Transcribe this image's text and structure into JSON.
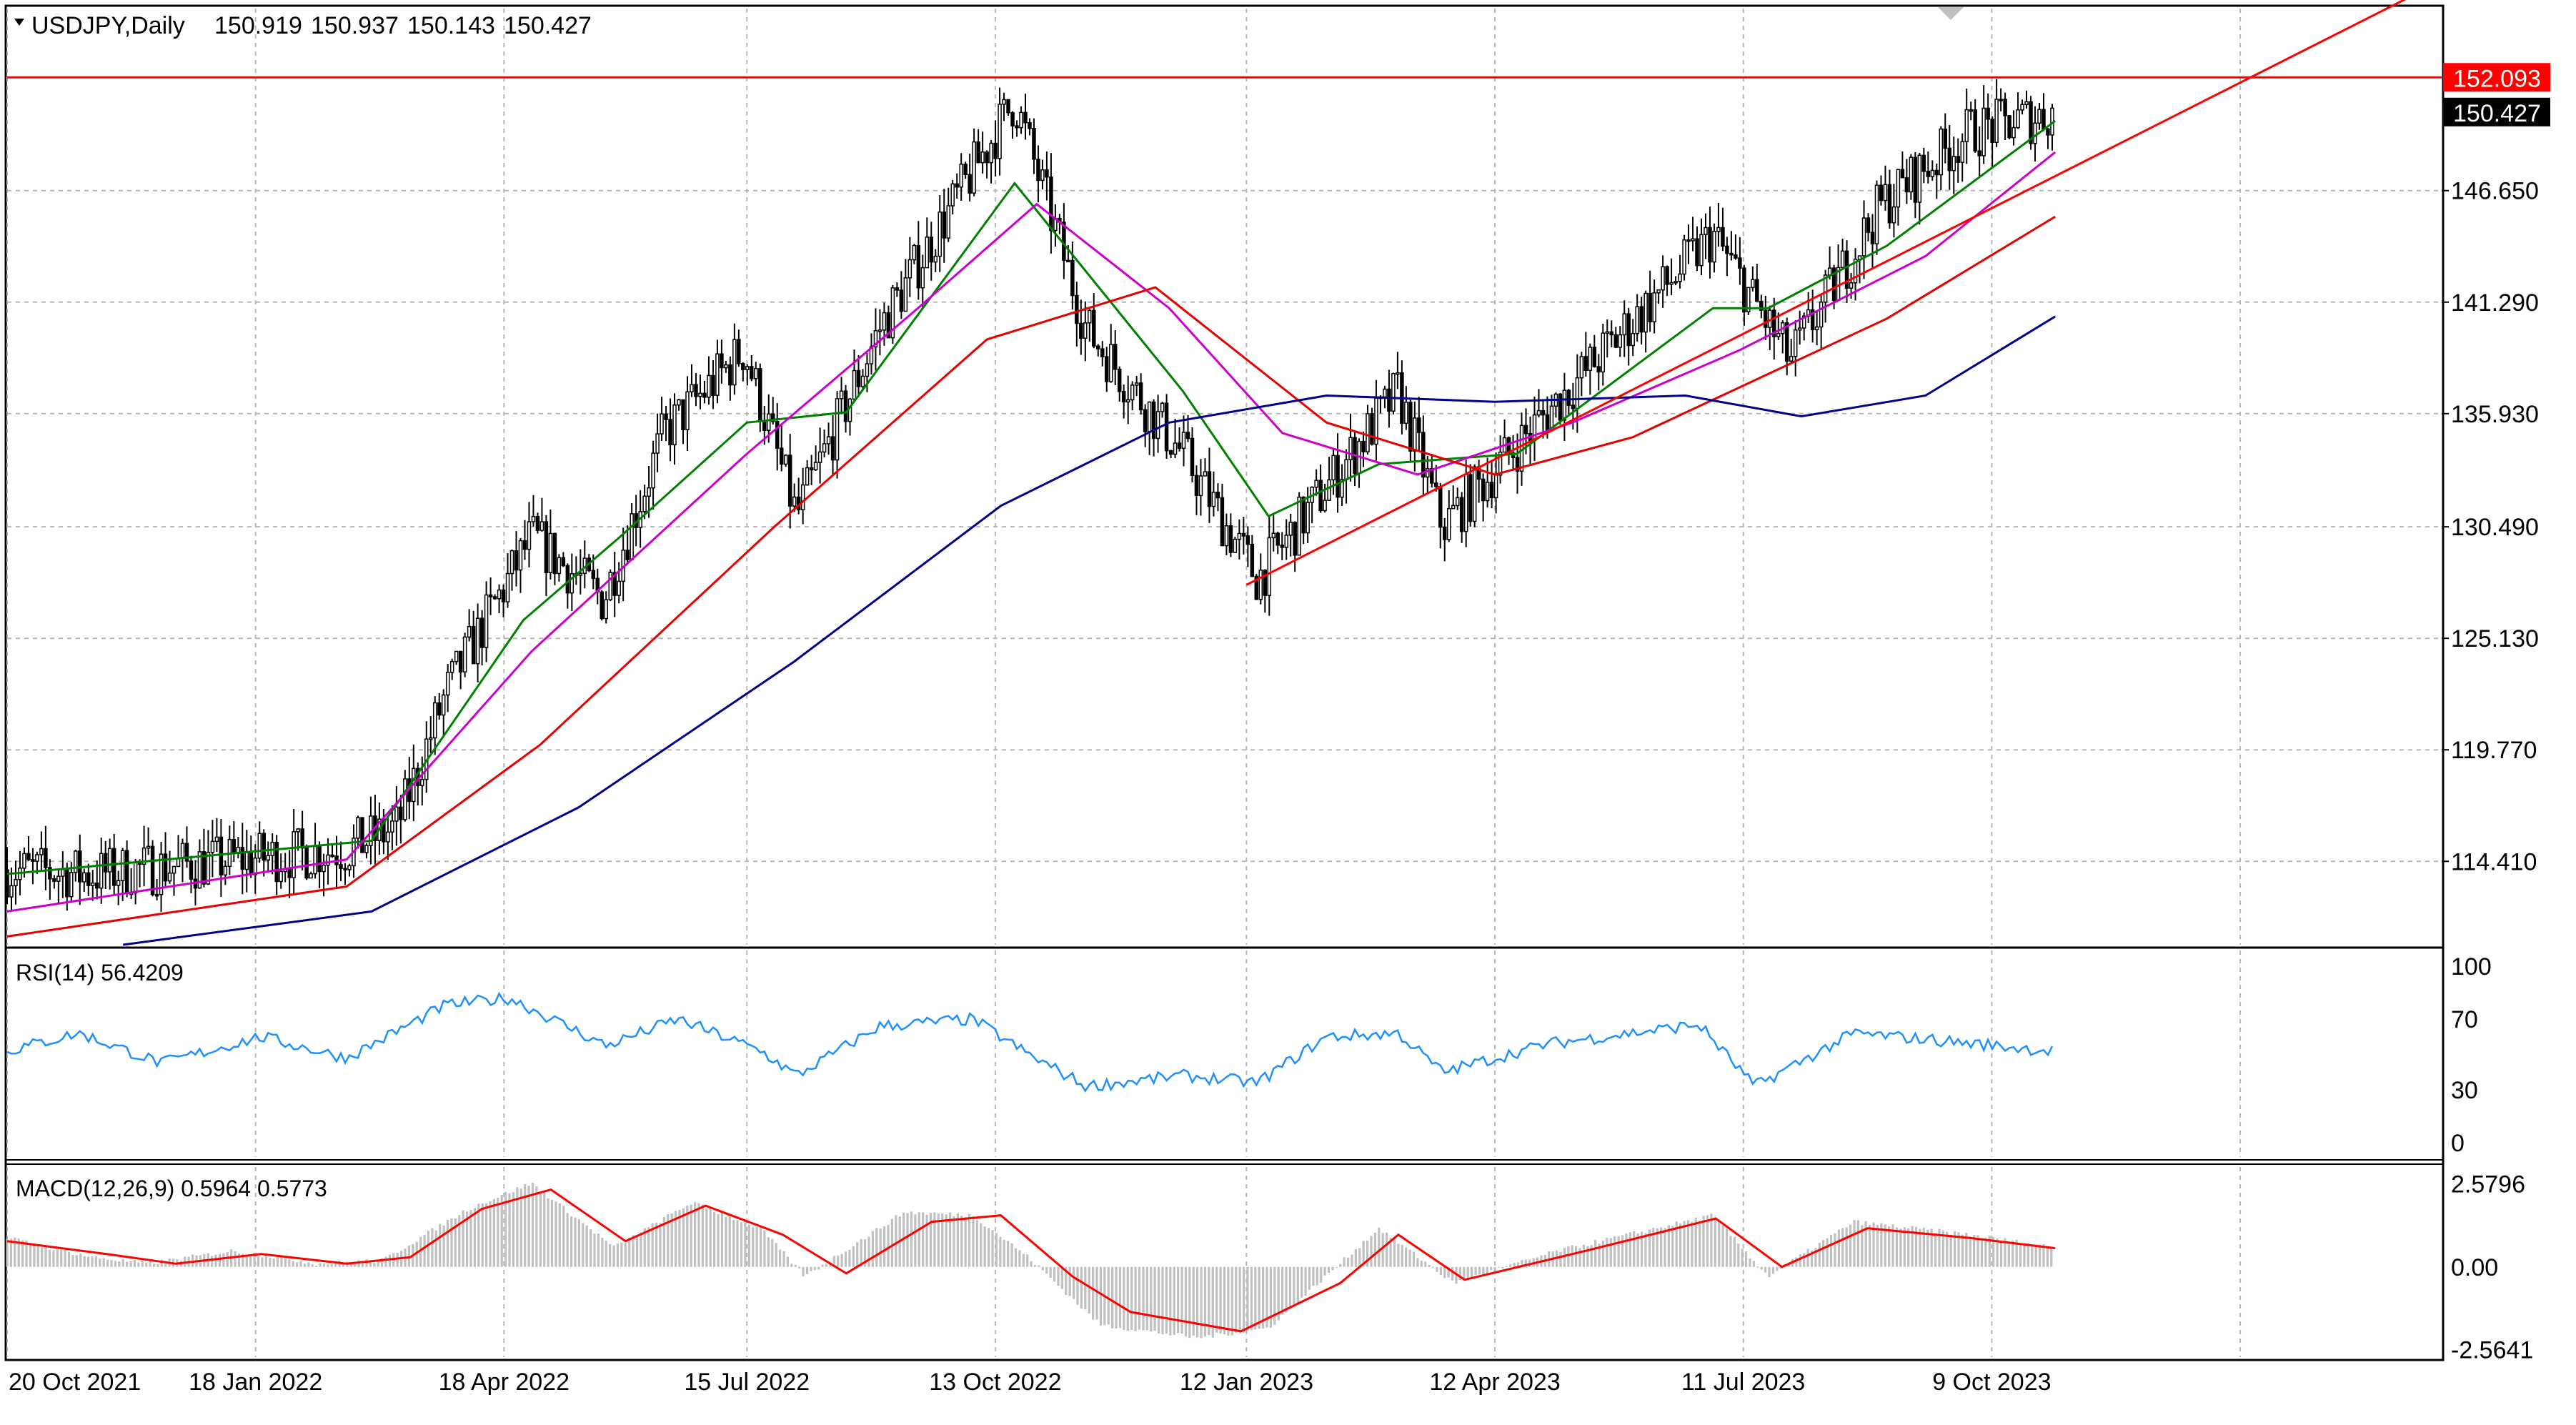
{
  "chart_data": {
    "type": "candlestick",
    "symbol_header": "USDJPY,Daily",
    "ohlc_header": [
      "150.919",
      "150.937",
      "150.143",
      "150.427"
    ],
    "y_axis": {
      "range": [
        110.4,
        155.4
      ],
      "ticks": [
        "146.650",
        "141.290",
        "135.930",
        "130.490",
        "125.130",
        "119.770",
        "114.410"
      ],
      "tick_values": [
        146.65,
        141.29,
        135.93,
        130.49,
        125.13,
        119.77,
        114.41
      ]
    },
    "x_axis": {
      "range": [
        "2021-10-20",
        "2024-03-20"
      ],
      "ticks": [
        "20 Oct 2021",
        "18 Jan 2022",
        "18 Apr 2022",
        "15 Jul 2022",
        "13 Oct 2022",
        "12 Jan 2023",
        "12 Apr 2023",
        "11 Jul 2023",
        "9 Oct 2023"
      ],
      "tick_dates": [
        "2021-10-20",
        "2022-01-18",
        "2022-04-18",
        "2022-07-15",
        "2022-10-13",
        "2023-01-12",
        "2023-04-12",
        "2023-07-11",
        "2023-10-09"
      ],
      "last_bar": "2023-11-01"
    },
    "price_path": [
      [
        "2021-10-20",
        114.0
      ],
      [
        "2021-11-20",
        113.8
      ],
      [
        "2021-12-20",
        114.2
      ],
      [
        "2022-01-20",
        114.6
      ],
      [
        "2022-02-20",
        115.0
      ],
      [
        "2022-03-10",
        116.0
      ],
      [
        "2022-03-28",
        122.5
      ],
      [
        "2022-04-28",
        130.0
      ],
      [
        "2022-05-24",
        127.0
      ],
      [
        "2022-06-15",
        135.0
      ],
      [
        "2022-07-14",
        139.0
      ],
      [
        "2022-08-02",
        131.0
      ],
      [
        "2022-09-01",
        140.0
      ],
      [
        "2022-10-20",
        151.0
      ],
      [
        "2022-11-15",
        140.0
      ],
      [
        "2022-12-20",
        134.0
      ],
      [
        "2023-01-16",
        128.0
      ],
      [
        "2023-03-08",
        137.0
      ],
      [
        "2023-03-24",
        130.5
      ],
      [
        "2023-05-01",
        136.0
      ],
      [
        "2023-06-30",
        144.5
      ],
      [
        "2023-07-28",
        138.5
      ],
      [
        "2023-08-30",
        146.0
      ],
      [
        "2023-10-01",
        149.5
      ],
      [
        "2023-11-01",
        150.4
      ]
    ],
    "moving_averages": [
      {
        "color": "#008000",
        "points": [
          [
            "2021-10-20",
            113.8
          ],
          [
            "2022-03-01",
            115.4
          ],
          [
            "2022-04-25",
            126.0
          ],
          [
            "2022-05-30",
            130.0
          ],
          [
            "2022-07-15",
            135.5
          ],
          [
            "2022-08-20",
            136.0
          ],
          [
            "2022-10-20",
            147.0
          ],
          [
            "2022-12-20",
            137.0
          ],
          [
            "2023-01-20",
            131.0
          ],
          [
            "2023-03-01",
            133.5
          ],
          [
            "2023-04-20",
            134.0
          ],
          [
            "2023-06-30",
            141.0
          ],
          [
            "2023-07-20",
            141.0
          ],
          [
            "2023-09-01",
            144.0
          ],
          [
            "2023-11-01",
            150.0
          ]
        ]
      },
      {
        "color": "#cc00cc",
        "points": [
          [
            "2021-10-20",
            112.0
          ],
          [
            "2022-02-20",
            114.5
          ],
          [
            "2022-04-28",
            124.5
          ],
          [
            "2022-07-15",
            134.0
          ],
          [
            "2022-09-15",
            141.0
          ],
          [
            "2022-10-28",
            146.0
          ],
          [
            "2022-12-15",
            141.0
          ],
          [
            "2023-01-25",
            135.0
          ],
          [
            "2023-03-15",
            133.0
          ],
          [
            "2023-05-10",
            135.5
          ],
          [
            "2023-07-10",
            139.0
          ],
          [
            "2023-09-15",
            143.5
          ],
          [
            "2023-11-01",
            148.5
          ]
        ]
      },
      {
        "color": "#e60000",
        "points": [
          [
            "2021-10-20",
            110.8
          ],
          [
            "2022-02-20",
            113.2
          ],
          [
            "2022-05-01",
            120.0
          ],
          [
            "2022-07-25",
            130.5
          ],
          [
            "2022-10-10",
            139.5
          ],
          [
            "2022-12-10",
            142.0
          ],
          [
            "2023-02-10",
            135.5
          ],
          [
            "2023-04-12",
            133.0
          ],
          [
            "2023-06-01",
            134.8
          ],
          [
            "2023-09-01",
            140.5
          ],
          [
            "2023-11-01",
            145.4
          ]
        ]
      },
      {
        "color": "#00008b",
        "points": [
          [
            "2021-12-01",
            110.4
          ],
          [
            "2022-03-01",
            112.0
          ],
          [
            "2022-05-15",
            117.0
          ],
          [
            "2022-08-01",
            124.0
          ],
          [
            "2022-10-15",
            131.5
          ],
          [
            "2022-12-15",
            135.5
          ],
          [
            "2023-02-10",
            136.8
          ],
          [
            "2023-04-12",
            136.5
          ],
          [
            "2023-06-20",
            136.8
          ],
          [
            "2023-08-01",
            135.8
          ],
          [
            "2023-09-15",
            136.8
          ],
          [
            "2023-11-01",
            140.6
          ]
        ]
      }
    ],
    "lines": [
      {
        "type": "horizontal",
        "value": 152.093,
        "label": "152.093",
        "color": "#ff0000"
      },
      {
        "type": "trend",
        "from": [
          "2023-01-12",
          127.7
        ],
        "to": [
          "2024-03-18",
          156.6
        ],
        "color": "#ff0000"
      }
    ],
    "current_price_label": "150.427",
    "indicators": [
      {
        "type": "line",
        "header": "RSI(14) 56.4209",
        "range": [
          0,
          100
        ],
        "levels": [
          "100",
          "70",
          "30",
          "0"
        ],
        "level_values": [
          100,
          70,
          30,
          0
        ],
        "color": "#1e90ff",
        "points": [
          [
            "2021-10-20",
            52
          ],
          [
            "2021-11-15",
            62
          ],
          [
            "2021-12-15",
            45
          ],
          [
            "2022-01-20",
            60
          ],
          [
            "2022-02-20",
            48
          ],
          [
            "2022-03-28",
            78
          ],
          [
            "2022-04-20",
            82
          ],
          [
            "2022-05-25",
            55
          ],
          [
            "2022-06-20",
            70
          ],
          [
            "2022-07-20",
            52
          ],
          [
            "2022-08-02",
            38
          ],
          [
            "2022-09-01",
            66
          ],
          [
            "2022-10-05",
            70
          ],
          [
            "2022-10-25",
            50
          ],
          [
            "2022-11-15",
            32
          ],
          [
            "2022-12-20",
            38
          ],
          [
            "2023-01-16",
            34
          ],
          [
            "2023-02-10",
            60
          ],
          [
            "2023-03-08",
            62
          ],
          [
            "2023-03-24",
            40
          ],
          [
            "2023-05-01",
            56
          ],
          [
            "2023-06-25",
            67
          ],
          [
            "2023-07-15",
            32
          ],
          [
            "2023-08-20",
            62
          ],
          [
            "2023-09-20",
            58
          ],
          [
            "2023-10-31",
            52
          ],
          [
            "2023-11-01",
            56
          ]
        ]
      },
      {
        "type": "macd",
        "header": "MACD(12,26,9) 0.5964 0.5773",
        "range": [
          -2.8,
          3.1
        ],
        "levels": [
          "2.5796",
          "0.00",
          "-2.5641"
        ],
        "level_values": [
          2.5796,
          0.0,
          -2.5641
        ],
        "histogram_color": "#c0c0c0",
        "signal_color": "#ff0000",
        "histogram": [
          [
            "2021-10-20",
            0.9
          ],
          [
            "2021-11-20",
            0.3
          ],
          [
            "2021-12-10",
            0.1
          ],
          [
            "2022-01-10",
            0.5
          ],
          [
            "2022-02-10",
            0.1
          ],
          [
            "2022-03-05",
            0.2
          ],
          [
            "2022-04-05",
            1.8
          ],
          [
            "2022-04-28",
            2.6
          ],
          [
            "2022-05-28",
            0.6
          ],
          [
            "2022-06-25",
            2.0
          ],
          [
            "2022-07-20",
            1.2
          ],
          [
            "2022-08-05",
            -0.3
          ],
          [
            "2022-09-10",
            1.7
          ],
          [
            "2022-10-05",
            1.6
          ],
          [
            "2022-10-25",
            0.3
          ],
          [
            "2022-11-20",
            -1.8
          ],
          [
            "2022-12-25",
            -2.2
          ],
          [
            "2023-01-20",
            -1.9
          ],
          [
            "2023-03-01",
            1.2
          ],
          [
            "2023-03-28",
            -0.5
          ],
          [
            "2023-05-05",
            0.5
          ],
          [
            "2023-06-30",
            1.6
          ],
          [
            "2023-07-20",
            -0.3
          ],
          [
            "2023-08-20",
            1.4
          ],
          [
            "2023-10-01",
            1.0
          ],
          [
            "2023-11-01",
            0.6
          ]
        ],
        "signal": [
          [
            "2021-10-20",
            0.8
          ],
          [
            "2021-11-25",
            0.4
          ],
          [
            "2021-12-20",
            0.1
          ],
          [
            "2022-01-20",
            0.4
          ],
          [
            "2022-02-20",
            0.1
          ],
          [
            "2022-03-15",
            0.3
          ],
          [
            "2022-04-10",
            1.8
          ],
          [
            "2022-05-05",
            2.4
          ],
          [
            "2022-06-01",
            0.8
          ],
          [
            "2022-06-30",
            1.9
          ],
          [
            "2022-07-28",
            1.0
          ],
          [
            "2022-08-20",
            -0.2
          ],
          [
            "2022-09-20",
            1.4
          ],
          [
            "2022-10-15",
            1.6
          ],
          [
            "2022-11-10",
            -0.3
          ],
          [
            "2022-12-01",
            -1.4
          ],
          [
            "2023-01-10",
            -2.0
          ],
          [
            "2023-02-15",
            -0.5
          ],
          [
            "2023-03-08",
            1.0
          ],
          [
            "2023-04-01",
            -0.4
          ],
          [
            "2023-05-15",
            0.5
          ],
          [
            "2023-07-01",
            1.5
          ],
          [
            "2023-07-25",
            0.0
          ],
          [
            "2023-08-25",
            1.2
          ],
          [
            "2023-10-01",
            0.9
          ],
          [
            "2023-11-01",
            0.58
          ]
        ]
      }
    ]
  }
}
